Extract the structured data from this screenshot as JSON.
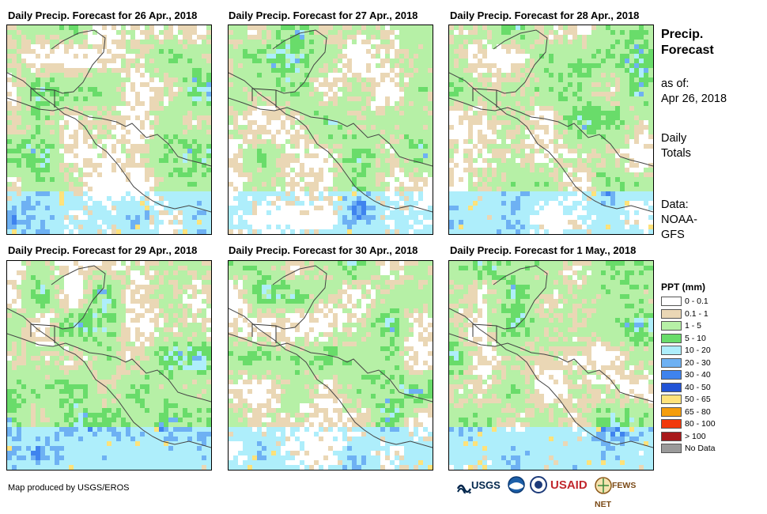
{
  "panels": [
    {
      "title": "Daily Precip. Forecast for 26 Apr., 2018",
      "seed": 11,
      "day": 0
    },
    {
      "title": "Daily Precip. Forecast for 27 Apr., 2018",
      "seed": 27,
      "day": 1
    },
    {
      "title": "Daily Precip. Forecast for 28 Apr., 2018",
      "seed": 43,
      "day": 2
    },
    {
      "title": "Daily Precip. Forecast for 29 Apr., 2018",
      "seed": 59,
      "day": 3
    },
    {
      "title": "Daily Precip. Forecast for 30 Apr., 2018",
      "seed": 71,
      "day": 4
    },
    {
      "title": "Daily Precip. Forecast for 1 May., 2018",
      "seed": 89,
      "day": 5
    }
  ],
  "sidebar": {
    "title_line1": "Precip.",
    "title_line2": "Forecast",
    "asof_line1": "as of:",
    "asof_line2": "Apr 26, 2018",
    "totals_line1": "Daily",
    "totals_line2": "Totals",
    "data_line1": "Data:",
    "data_line2": "NOAA-",
    "data_line3": "GFS"
  },
  "legend": {
    "title": "PPT (mm)",
    "items": [
      {
        "label": "0 - 0.1",
        "color": "#ffffff"
      },
      {
        "label": "0.1 - 1",
        "color": "#ead7b5"
      },
      {
        "label": "1 - 5",
        "color": "#b6f0a6"
      },
      {
        "label": "5 - 10",
        "color": "#69dc6a"
      },
      {
        "label": "10 - 20",
        "color": "#aeeefb"
      },
      {
        "label": "20 - 30",
        "color": "#6eb1f3"
      },
      {
        "label": "30 - 40",
        "color": "#3f83ee"
      },
      {
        "label": "40 - 50",
        "color": "#2153d6"
      },
      {
        "label": "50 - 65",
        "color": "#ffe27a"
      },
      {
        "label": "65 - 80",
        "color": "#f59d0c"
      },
      {
        "label": "80 - 100",
        "color": "#f13a0d"
      },
      {
        "label": "> 100",
        "color": "#a8191b"
      },
      {
        "label": "No Data",
        "color": "#9a9a9a"
      }
    ]
  },
  "footer": {
    "credit": "Map produced by USGS/EROS",
    "logo_usgs": "USGS",
    "logo_usaid": "USAID",
    "logo_fews": "FEWS NET"
  }
}
